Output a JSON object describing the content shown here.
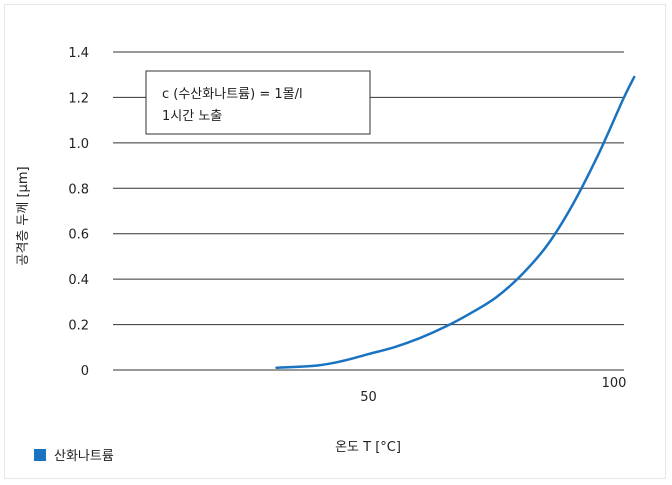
{
  "chart_data": {
    "type": "line",
    "xlabel": "온도 T [°C]",
    "ylabel": "공격층 두께 [µm]",
    "xlim": [
      0,
      100
    ],
    "ylim": [
      0,
      1.4
    ],
    "y_ticks": [
      "0",
      "0.2",
      "0.4",
      "0.6",
      "0.8",
      "1.0",
      "1.2",
      "1.4"
    ],
    "x_ticks": [
      {
        "value": 50,
        "label": "50"
      },
      {
        "value": 100,
        "label": "100"
      }
    ],
    "grid": true,
    "legend_position": "bottom-left",
    "annotation_lines": [
      "c (수산화나트륨) = 1몰/l",
      "1시간 노출"
    ],
    "series": [
      {
        "name": "산화나트륨",
        "color": "#1a73c0",
        "x": [
          32,
          40,
          45,
          50,
          55,
          60,
          65,
          70,
          75,
          80,
          85,
          90,
          95,
          100,
          102
        ],
        "y": [
          0.01,
          0.02,
          0.04,
          0.07,
          0.1,
          0.14,
          0.19,
          0.25,
          0.32,
          0.42,
          0.55,
          0.73,
          0.95,
          1.2,
          1.29
        ]
      }
    ]
  }
}
